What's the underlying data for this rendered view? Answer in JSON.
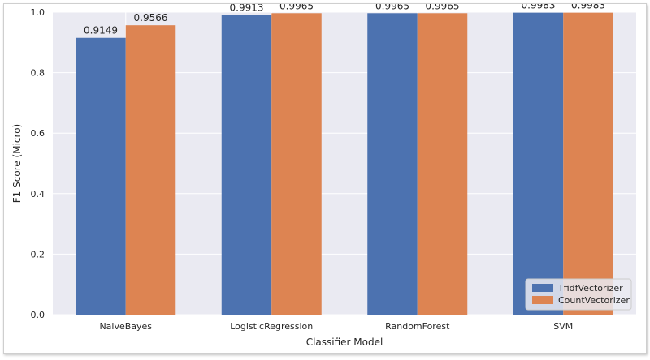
{
  "chart_data": {
    "type": "bar",
    "title": "",
    "xlabel": "Classifier Model",
    "ylabel": "F1 Score (Micro)",
    "categories": [
      "NaiveBayes",
      "LogisticRegression",
      "RandomForest",
      "SVM"
    ],
    "series": [
      {
        "name": "TfidfVectorizer",
        "color": "#4c72b0",
        "values": [
          0.9149,
          0.9913,
          0.9965,
          0.9983
        ],
        "labels": [
          "0.9149",
          "0.9913",
          "0.9965",
          "0.9983"
        ]
      },
      {
        "name": "CountVectorizer",
        "color": "#dd8452",
        "values": [
          0.9566,
          0.9965,
          0.9965,
          0.9983
        ],
        "labels": [
          "0.9566",
          "0.9965",
          "0.9965",
          "0.9983"
        ]
      }
    ],
    "ylim": [
      0,
      1.0
    ],
    "yticks": [
      0.0,
      0.2,
      0.4,
      0.6,
      0.8,
      1.0
    ],
    "ytick_labels": [
      "0.0",
      "0.2",
      "0.4",
      "0.6",
      "0.8",
      "1.0"
    ],
    "grid": true,
    "legend_position": "bottom-right",
    "plot_background": "#eaeaf2",
    "grid_color": "#ffffff"
  }
}
